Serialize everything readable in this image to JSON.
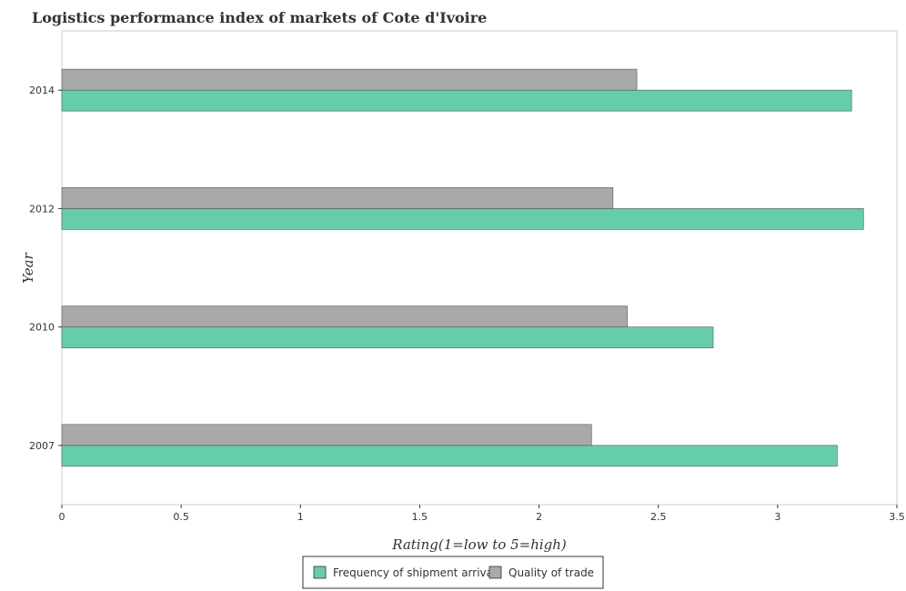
{
  "chart_data": {
    "type": "bar",
    "orientation": "horizontal",
    "title": "Logistics performance index of markets of Cote d'Ivoire",
    "xlabel": "Rating(1=low to 5=high)",
    "ylabel": "Year",
    "categories": [
      "2007",
      "2010",
      "2012",
      "2014"
    ],
    "series": [
      {
        "name": "Frequency of shipment arrival",
        "color": "#66cdaa",
        "values": [
          3.25,
          2.73,
          3.36,
          3.31
        ]
      },
      {
        "name": "Quality of trade",
        "color": "#a9a9a9",
        "values": [
          2.22,
          2.37,
          2.31,
          2.41
        ]
      }
    ],
    "xlim": [
      0,
      3.5
    ],
    "xticks": [
      0,
      0.5,
      1,
      1.5,
      2,
      2.5,
      3,
      3.5
    ],
    "xtick_labels": [
      "0",
      "0.5",
      "1",
      "1.5",
      "2",
      "2.5",
      "3",
      "3.5"
    ],
    "grid": false,
    "legend_position": "bottom-center"
  }
}
